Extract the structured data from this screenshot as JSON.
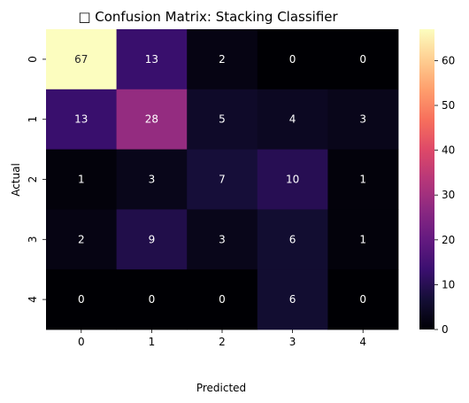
{
  "chart_data": {
    "type": "heatmap",
    "title": "□ Confusion Matrix: Stacking Classifier",
    "xlabel": "Predicted",
    "ylabel": "Actual",
    "x_categories": [
      "0",
      "1",
      "2",
      "3",
      "4"
    ],
    "y_categories": [
      "0",
      "1",
      "2",
      "3",
      "4"
    ],
    "values": [
      [
        67,
        13,
        2,
        0,
        0
      ],
      [
        13,
        28,
        5,
        4,
        3
      ],
      [
        1,
        3,
        7,
        10,
        1
      ],
      [
        2,
        9,
        3,
        6,
        1
      ],
      [
        0,
        0,
        0,
        6,
        0
      ]
    ],
    "colormap": "magma",
    "vmin": 0,
    "vmax": 67,
    "colorbar_ticks": [
      0,
      10,
      20,
      30,
      40,
      50,
      60
    ],
    "annotation_colors": {
      "on_dark": "#ffffff",
      "on_light": "#262626"
    }
  }
}
